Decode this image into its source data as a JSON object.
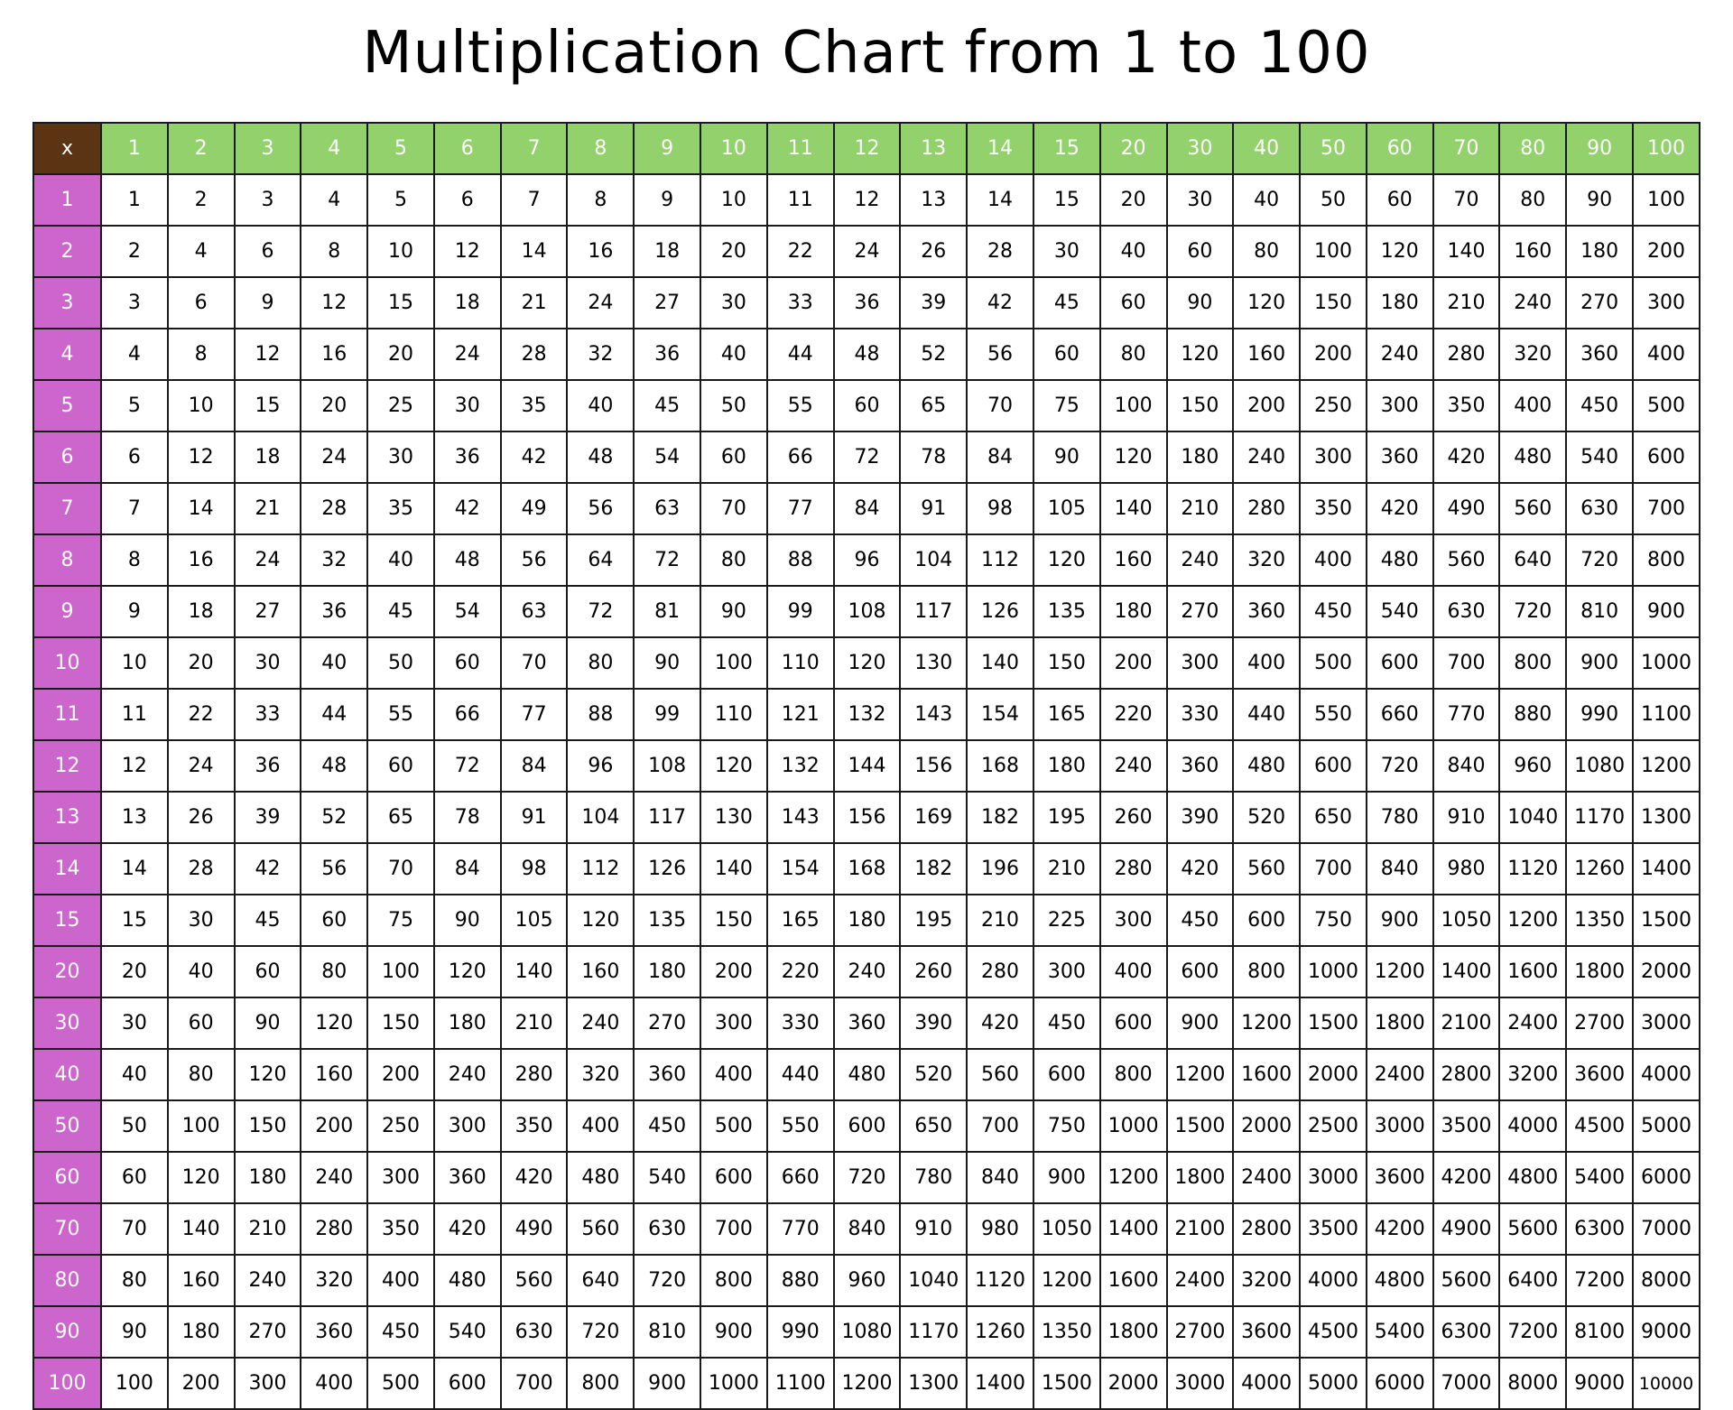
{
  "title": "Multiplication Chart from 1 to 100",
  "table": {
    "corner": "x",
    "columns": [
      1,
      2,
      3,
      4,
      5,
      6,
      7,
      8,
      9,
      10,
      11,
      12,
      13,
      14,
      15,
      20,
      30,
      40,
      50,
      60,
      70,
      80,
      90,
      100
    ],
    "rows": [
      {
        "label": 1,
        "cells": [
          1,
          2,
          3,
          4,
          5,
          6,
          7,
          8,
          9,
          10,
          11,
          12,
          13,
          14,
          15,
          20,
          30,
          40,
          50,
          60,
          70,
          80,
          90,
          100
        ]
      },
      {
        "label": 2,
        "cells": [
          2,
          4,
          6,
          8,
          10,
          12,
          14,
          16,
          18,
          20,
          22,
          24,
          26,
          28,
          30,
          40,
          60,
          80,
          100,
          120,
          140,
          160,
          180,
          200
        ]
      },
      {
        "label": 3,
        "cells": [
          3,
          6,
          9,
          12,
          15,
          18,
          21,
          24,
          27,
          30,
          33,
          36,
          39,
          42,
          45,
          60,
          90,
          120,
          150,
          180,
          210,
          240,
          270,
          300
        ]
      },
      {
        "label": 4,
        "cells": [
          4,
          8,
          12,
          16,
          20,
          24,
          28,
          32,
          36,
          40,
          44,
          48,
          52,
          56,
          60,
          80,
          120,
          160,
          200,
          240,
          280,
          320,
          360,
          400
        ]
      },
      {
        "label": 5,
        "cells": [
          5,
          10,
          15,
          20,
          25,
          30,
          35,
          40,
          45,
          50,
          55,
          60,
          65,
          70,
          75,
          100,
          150,
          200,
          250,
          300,
          350,
          400,
          450,
          500
        ]
      },
      {
        "label": 6,
        "cells": [
          6,
          12,
          18,
          24,
          30,
          36,
          42,
          48,
          54,
          60,
          66,
          72,
          78,
          84,
          90,
          120,
          180,
          240,
          300,
          360,
          420,
          480,
          540,
          600
        ]
      },
      {
        "label": 7,
        "cells": [
          7,
          14,
          21,
          28,
          35,
          42,
          49,
          56,
          63,
          70,
          77,
          84,
          91,
          98,
          105,
          140,
          210,
          280,
          350,
          420,
          490,
          560,
          630,
          700
        ]
      },
      {
        "label": 8,
        "cells": [
          8,
          16,
          24,
          32,
          40,
          48,
          56,
          64,
          72,
          80,
          88,
          96,
          104,
          112,
          120,
          160,
          240,
          320,
          400,
          480,
          560,
          640,
          720,
          800
        ]
      },
      {
        "label": 9,
        "cells": [
          9,
          18,
          27,
          36,
          45,
          54,
          63,
          72,
          81,
          90,
          99,
          108,
          117,
          126,
          135,
          180,
          270,
          360,
          450,
          540,
          630,
          720,
          810,
          900
        ]
      },
      {
        "label": 10,
        "cells": [
          10,
          20,
          30,
          40,
          50,
          60,
          70,
          80,
          90,
          100,
          110,
          120,
          130,
          140,
          150,
          200,
          300,
          400,
          500,
          600,
          700,
          800,
          900,
          1000
        ]
      },
      {
        "label": 11,
        "cells": [
          11,
          22,
          33,
          44,
          55,
          66,
          77,
          88,
          99,
          110,
          121,
          132,
          143,
          154,
          165,
          220,
          330,
          440,
          550,
          660,
          770,
          880,
          990,
          1100
        ]
      },
      {
        "label": 12,
        "cells": [
          12,
          24,
          36,
          48,
          60,
          72,
          84,
          96,
          108,
          120,
          132,
          144,
          156,
          168,
          180,
          240,
          360,
          480,
          600,
          720,
          840,
          960,
          1080,
          1200
        ]
      },
      {
        "label": 13,
        "cells": [
          13,
          26,
          39,
          52,
          65,
          78,
          91,
          104,
          117,
          130,
          143,
          156,
          169,
          182,
          195,
          260,
          390,
          520,
          650,
          780,
          910,
          1040,
          1170,
          1300
        ]
      },
      {
        "label": 14,
        "cells": [
          14,
          28,
          42,
          56,
          70,
          84,
          98,
          112,
          126,
          140,
          154,
          168,
          182,
          196,
          210,
          280,
          420,
          560,
          700,
          840,
          980,
          1120,
          1260,
          1400
        ]
      },
      {
        "label": 15,
        "cells": [
          15,
          30,
          45,
          60,
          75,
          90,
          105,
          120,
          135,
          150,
          165,
          180,
          195,
          210,
          225,
          300,
          450,
          600,
          750,
          900,
          1050,
          1200,
          1350,
          1500
        ]
      },
      {
        "label": 20,
        "cells": [
          20,
          40,
          60,
          80,
          100,
          120,
          140,
          160,
          180,
          200,
          220,
          240,
          260,
          280,
          300,
          400,
          600,
          800,
          1000,
          1200,
          1400,
          1600,
          1800,
          2000
        ]
      },
      {
        "label": 30,
        "cells": [
          30,
          60,
          90,
          120,
          150,
          180,
          210,
          240,
          270,
          300,
          330,
          360,
          390,
          420,
          450,
          600,
          900,
          1200,
          1500,
          1800,
          2100,
          2400,
          2700,
          3000
        ]
      },
      {
        "label": 40,
        "cells": [
          40,
          80,
          120,
          160,
          200,
          240,
          280,
          320,
          360,
          400,
          440,
          480,
          520,
          560,
          600,
          800,
          1200,
          1600,
          2000,
          2400,
          2800,
          3200,
          3600,
          4000
        ]
      },
      {
        "label": 50,
        "cells": [
          50,
          100,
          150,
          200,
          250,
          300,
          350,
          400,
          450,
          500,
          550,
          600,
          650,
          700,
          750,
          1000,
          1500,
          2000,
          2500,
          3000,
          3500,
          4000,
          4500,
          5000
        ]
      },
      {
        "label": 60,
        "cells": [
          60,
          120,
          180,
          240,
          300,
          360,
          420,
          480,
          540,
          600,
          660,
          720,
          780,
          840,
          900,
          1200,
          1800,
          2400,
          3000,
          3600,
          4200,
          4800,
          5400,
          6000
        ]
      },
      {
        "label": 70,
        "cells": [
          70,
          140,
          210,
          280,
          350,
          420,
          490,
          560,
          630,
          700,
          770,
          840,
          910,
          980,
          1050,
          1400,
          2100,
          2800,
          3500,
          4200,
          4900,
          5600,
          6300,
          7000
        ]
      },
      {
        "label": 80,
        "cells": [
          80,
          160,
          240,
          320,
          400,
          480,
          560,
          640,
          720,
          800,
          880,
          960,
          1040,
          1120,
          1200,
          1600,
          2400,
          3200,
          4000,
          4800,
          5600,
          6400,
          7200,
          8000
        ]
      },
      {
        "label": 90,
        "cells": [
          90,
          180,
          270,
          360,
          450,
          540,
          630,
          720,
          810,
          900,
          990,
          1080,
          1170,
          1260,
          1350,
          1800,
          2700,
          3600,
          4500,
          5400,
          6300,
          7200,
          8100,
          9000
        ]
      },
      {
        "label": 100,
        "cells": [
          100,
          200,
          300,
          400,
          500,
          600,
          700,
          800,
          900,
          1000,
          1100,
          1200,
          1300,
          1400,
          1500,
          2000,
          3000,
          4000,
          5000,
          6000,
          7000,
          8000,
          9000,
          10000
        ]
      }
    ]
  }
}
